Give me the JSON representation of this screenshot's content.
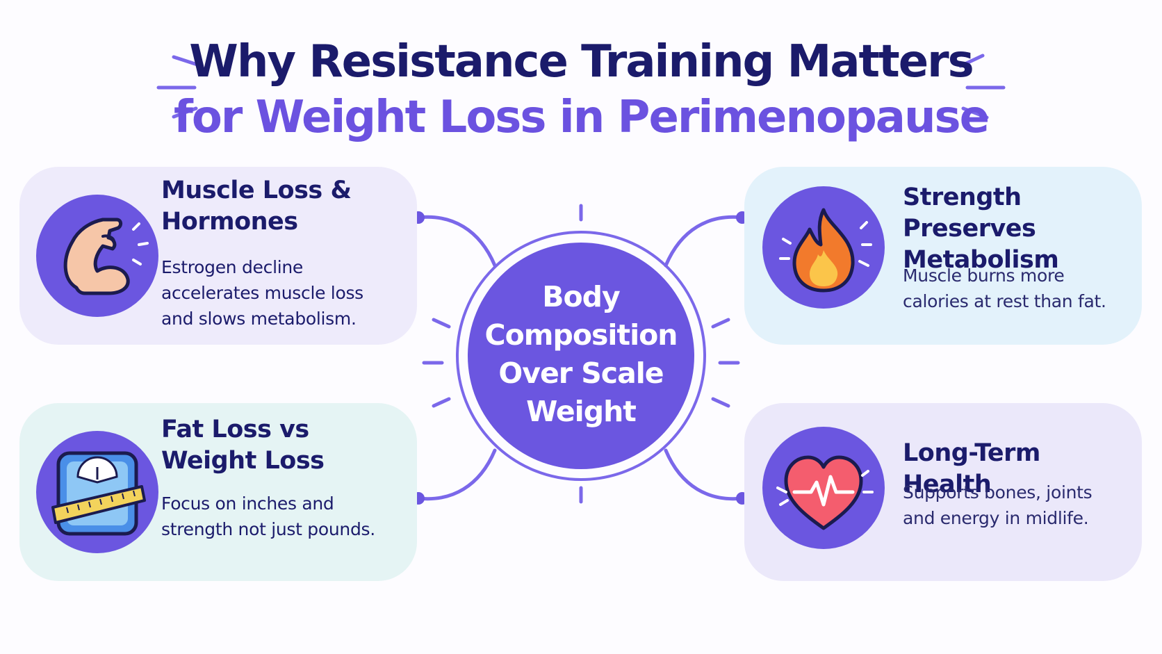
{
  "title": {
    "line1": "Why Resistance Training Matters",
    "line2": "for Weight Loss in Perimenopause"
  },
  "center": {
    "label": "Body Composition Over Scale Weight"
  },
  "cards": [
    {
      "position": "top-left",
      "title": "Muscle Loss & Hormones",
      "text": "Estrogen decline accelerates muscle loss and slows metabolism.",
      "icon": "flexed-arm-icon"
    },
    {
      "position": "bottom-left",
      "title": "Fat Loss vs Weight Loss",
      "text": "Focus on inches and strength not just pounds.",
      "icon": "scale-with-tape-measure-icon"
    },
    {
      "position": "top-right",
      "title": "Strength Preserves Metabolism",
      "text": "Muscle burns more calories at rest than fat.",
      "icon": "flame-icon"
    },
    {
      "position": "bottom-right",
      "title": "Long-Term Health",
      "text": "Supports bones, joints and energy in midlife.",
      "icon": "heart-heartbeat-icon"
    }
  ],
  "colors": {
    "primary": "#6b56e0",
    "title_dark": "#1b1b6b",
    "title_accent": "#6b52e0",
    "card_lavender": "#eeebfb",
    "card_mint": "#e5f4f4",
    "card_sky": "#e3f2fb"
  }
}
